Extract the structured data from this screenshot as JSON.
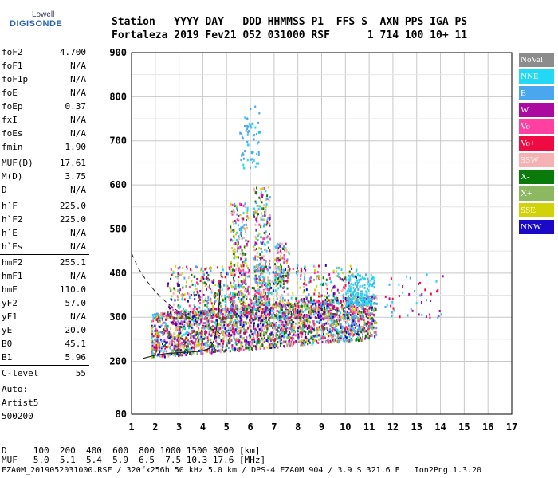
{
  "logo": {
    "top": "Lowell",
    "bottom": "DIGISONDE"
  },
  "header": {
    "line1": "Station   YYYY DAY   DDD HHMMSS P1  FFS S  AXN PPS IGA PS",
    "line2": "Fortaleza 2019 Fev21 052 031000 RSF      1 714 100 10+ 11"
  },
  "params": [
    [
      {
        "k": "foF2",
        "v": "4.700"
      },
      {
        "k": "foF1",
        "v": "N/A"
      },
      {
        "k": "foF1p",
        "v": "N/A"
      },
      {
        "k": "foE",
        "v": "N/A"
      },
      {
        "k": "foEp",
        "v": "0.37"
      },
      {
        "k": "fxI",
        "v": "N/A"
      },
      {
        "k": "foEs",
        "v": "N/A"
      },
      {
        "k": "fmin",
        "v": "1.90"
      }
    ],
    [
      {
        "k": "MUF(D)",
        "v": "17.61"
      },
      {
        "k": "M(D)",
        "v": "3.75"
      },
      {
        "k": "D",
        "v": "N/A"
      }
    ],
    [
      {
        "k": "h`F",
        "v": "225.0"
      },
      {
        "k": "h`F2",
        "v": "225.0"
      },
      {
        "k": "h`E",
        "v": "N/A"
      },
      {
        "k": "h`Es",
        "v": "N/A"
      }
    ],
    [
      {
        "k": "hmF2",
        "v": "255.1"
      },
      {
        "k": "hmF1",
        "v": "N/A"
      },
      {
        "k": "hmE",
        "v": "110.0"
      },
      {
        "k": "yF2",
        "v": "57.0"
      },
      {
        "k": "yF1",
        "v": "N/A"
      },
      {
        "k": "yE",
        "v": "20.0"
      },
      {
        "k": "B0",
        "v": "45.1"
      },
      {
        "k": "B1",
        "v": "5.96"
      }
    ],
    [
      {
        "k": "C-level",
        "v": "55"
      }
    ]
  ],
  "auto": {
    "l1": "Auto:",
    "l2": "Artist5",
    "l3": "500200"
  },
  "legend": [
    {
      "label": "NoVal",
      "color": "#8c8c8c"
    },
    {
      "label": "NNE",
      "color": "#22d8f2"
    },
    {
      "label": "E",
      "color": "#4aa6ee"
    },
    {
      "label": "W",
      "color": "#aa0aa0"
    },
    {
      "label": "Vo-",
      "color": "#ff3fa2"
    },
    {
      "label": "Vo+",
      "color": "#ef0a42"
    },
    {
      "label": "SSW",
      "color": "#f6b2b2"
    },
    {
      "label": "X-",
      "color": "#0a7a0a"
    },
    {
      "label": "X+",
      "color": "#8cb862"
    },
    {
      "label": "SSE",
      "color": "#d2d20a"
    },
    {
      "label": "NNW",
      "color": "#1a0ac8"
    }
  ],
  "footer": {
    "l1": "D     100  200  400  600  800 1000 1500 3000 [km]",
    "l2": "MUF   5.0  5.1  5.4  5.9  6.5  7.5 10.3 17.6 [MHz]",
    "l3": "FZA0M_2019052031000.RSF / 320fx256h 50 kHz 5.0 km / DPS-4 FZA0M 904 / 3.9 S 321.6 E   Ion2Png 1.3.20"
  },
  "chart_data": {
    "type": "scatter",
    "xlim": [
      1,
      17
    ],
    "ylim": [
      80,
      900
    ],
    "xticks": [
      1,
      2,
      3,
      4,
      5,
      6,
      7,
      8,
      9,
      10,
      11,
      12,
      13,
      14,
      15,
      16,
      17
    ],
    "yticks": [
      80,
      200,
      300,
      400,
      500,
      600,
      700,
      800,
      900
    ],
    "grid": true,
    "legend_position": "right",
    "regions": [
      {
        "name": "main trace",
        "x": [
          1.8,
          11.3
        ],
        "y": [
          210,
          330
        ],
        "n": 2600
      },
      {
        "name": "upper trace",
        "x": [
          2.5,
          10.5
        ],
        "y": [
          300,
          420
        ],
        "n": 900
      },
      {
        "name": "spread column 5.5",
        "x": [
          5.1,
          5.9
        ],
        "y": [
          320,
          560
        ],
        "n": 260
      },
      {
        "name": "spread column 6.4",
        "x": [
          6.1,
          6.8
        ],
        "y": [
          330,
          600
        ],
        "n": 320
      },
      {
        "name": "spread column 7.3",
        "x": [
          7.0,
          7.6
        ],
        "y": [
          380,
          470
        ],
        "n": 120
      },
      {
        "name": "upper echo",
        "x": [
          5.5,
          6.4
        ],
        "y": [
          640,
          780
        ],
        "n": 60
      },
      {
        "name": "NNE 10.7",
        "x": [
          10.0,
          11.2
        ],
        "y": [
          330,
          400
        ],
        "n": 150
      },
      {
        "name": "tail 12-14",
        "x": [
          11.6,
          14.1
        ],
        "y": [
          300,
          400
        ],
        "n": 50
      }
    ],
    "profile_curve": [
      [
        1.0,
        445
      ],
      [
        1.3,
        410
      ],
      [
        1.6,
        385
      ],
      [
        2.0,
        358
      ],
      [
        2.5,
        332
      ],
      [
        3.0,
        312
      ],
      [
        3.5,
        296
      ],
      [
        4.0,
        282
      ],
      [
        4.5,
        270
      ],
      [
        4.75,
        262
      ]
    ],
    "trace_curve": [
      [
        1.5,
        207
      ],
      [
        2.0,
        214
      ],
      [
        2.5,
        218
      ],
      [
        3.0,
        220
      ],
      [
        3.5,
        221
      ],
      [
        4.0,
        224
      ],
      [
        4.3,
        230
      ],
      [
        4.5,
        250
      ],
      [
        4.65,
        300
      ],
      [
        4.75,
        385
      ]
    ]
  }
}
